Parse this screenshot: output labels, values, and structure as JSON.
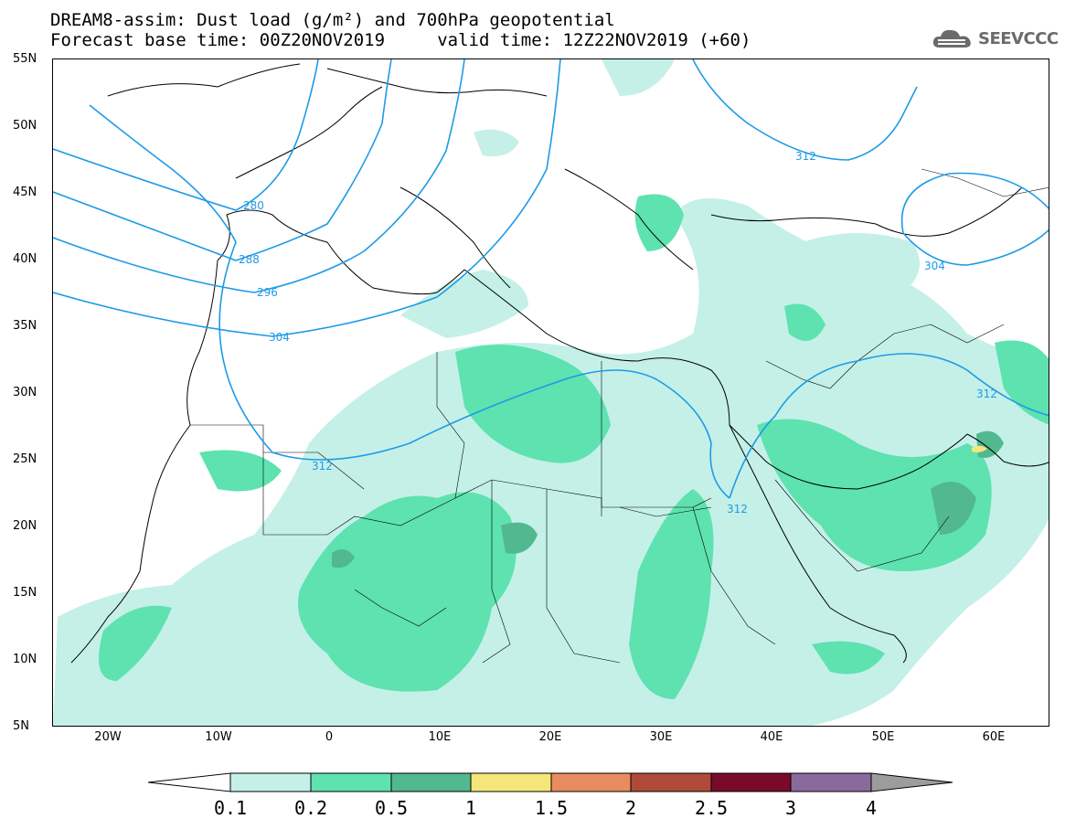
{
  "header": {
    "title_line1": "DREAM8-assim: Dust load (g/m²) and 700hPa geopotential",
    "title_line2": "Forecast base time: 00Z20NOV2019     valid time: 12Z22NOV2019 (+60)"
  },
  "logo": {
    "icon": "cloud-icon",
    "text": "SEEVCCC",
    "color": "#6b6b6b"
  },
  "map": {
    "lat_range": [
      5,
      55
    ],
    "lon_range": [
      -25,
      65
    ],
    "lat_labels": [
      "55N",
      "50N",
      "45N",
      "40N",
      "35N",
      "30N",
      "25N",
      "20N",
      "15N",
      "10N",
      "5N"
    ],
    "lon_labels": [
      "20W",
      "10W",
      "0",
      "10E",
      "20E",
      "30E",
      "40E",
      "50E",
      "60E"
    ],
    "contour_color": "#1e9be6",
    "contour_labels": [
      "280",
      "288",
      "296",
      "304",
      "312",
      "312",
      "312",
      "312",
      "304"
    ]
  },
  "colorbar": {
    "levels": [
      "0.1",
      "0.2",
      "0.5",
      "1",
      "1.5",
      "2",
      "2.5",
      "3",
      "4"
    ],
    "colors": [
      "#ffffff",
      "#c4f0e8",
      "#5ee2b0",
      "#52b890",
      "#f4e67a",
      "#e88c60",
      "#b04a38",
      "#7a0a2a",
      "#8a6a9c",
      "#9c9c9c"
    ]
  }
}
